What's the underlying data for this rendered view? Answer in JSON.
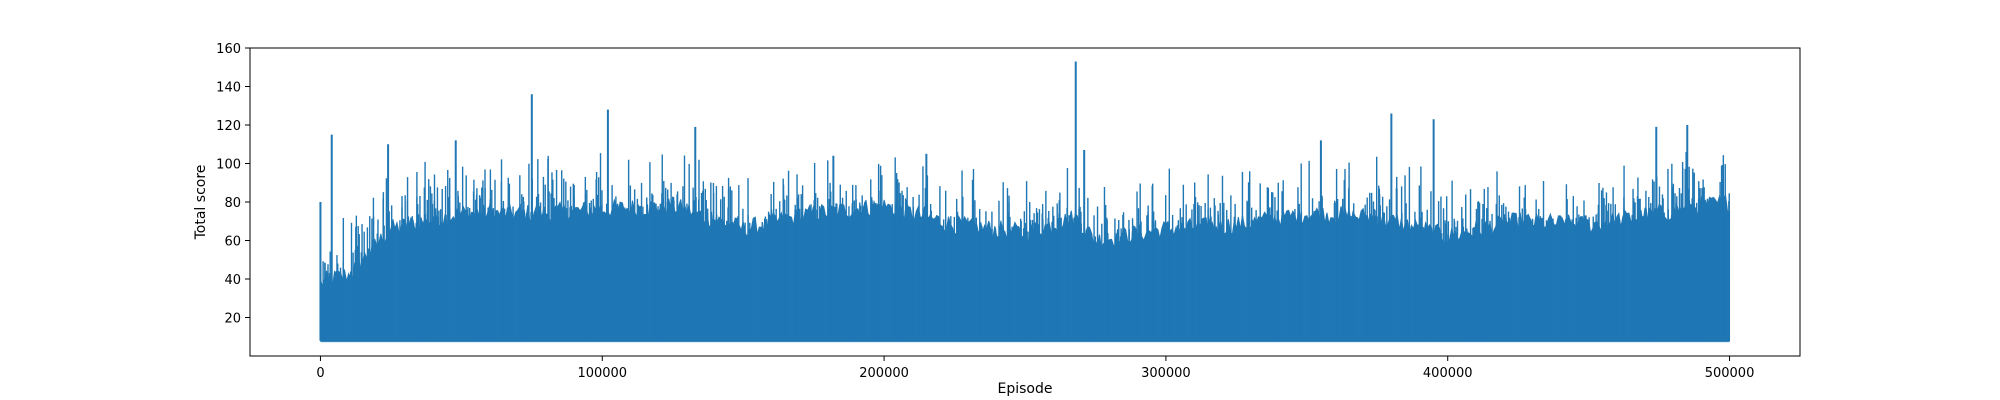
{
  "chart_data": {
    "type": "line",
    "title": "",
    "xlabel": "Episode",
    "ylabel": "Total score",
    "xlim": [
      -25000,
      525000
    ],
    "ylim": [
      0,
      160
    ],
    "x_ticks": [
      0,
      100000,
      200000,
      300000,
      400000,
      500000
    ],
    "x_tick_labels": [
      "0",
      "100000",
      "200000",
      "300000",
      "400000",
      "500000"
    ],
    "y_ticks": [
      20,
      40,
      60,
      80,
      100,
      120,
      140,
      160
    ],
    "y_tick_labels": [
      "20",
      "40",
      "60",
      "80",
      "100",
      "120",
      "140",
      "160"
    ],
    "grid": false,
    "series": [
      {
        "name": "Total score",
        "color": "#1f77b4",
        "x_range": [
          0,
          500000
        ],
        "min_value": 8,
        "band_envelope": {
          "x": [
            0,
            10000,
            25000,
            50000,
            75000,
            100000,
            125000,
            150000,
            175000,
            200000,
            225000,
            250000,
            268000,
            275000,
            300000,
            325000,
            350000,
            375000,
            400000,
            425000,
            450000,
            475000,
            500000
          ],
          "y": [
            38,
            42,
            66,
            74,
            74,
            76,
            78,
            66,
            74,
            78,
            68,
            64,
            72,
            60,
            66,
            68,
            74,
            72,
            62,
            70,
            68,
            74,
            80
          ]
        },
        "peaks": [
          {
            "x": 0,
            "y": 80
          },
          {
            "x": 4000,
            "y": 115
          },
          {
            "x": 24000,
            "y": 110
          },
          {
            "x": 48000,
            "y": 112
          },
          {
            "x": 75000,
            "y": 136
          },
          {
            "x": 102000,
            "y": 128
          },
          {
            "x": 133000,
            "y": 119
          },
          {
            "x": 182000,
            "y": 104
          },
          {
            "x": 215000,
            "y": 105
          },
          {
            "x": 268000,
            "y": 153
          },
          {
            "x": 271000,
            "y": 107
          },
          {
            "x": 355000,
            "y": 112
          },
          {
            "x": 380000,
            "y": 126
          },
          {
            "x": 395000,
            "y": 123
          },
          {
            "x": 474000,
            "y": 119
          },
          {
            "x": 485000,
            "y": 120
          }
        ]
      }
    ]
  }
}
